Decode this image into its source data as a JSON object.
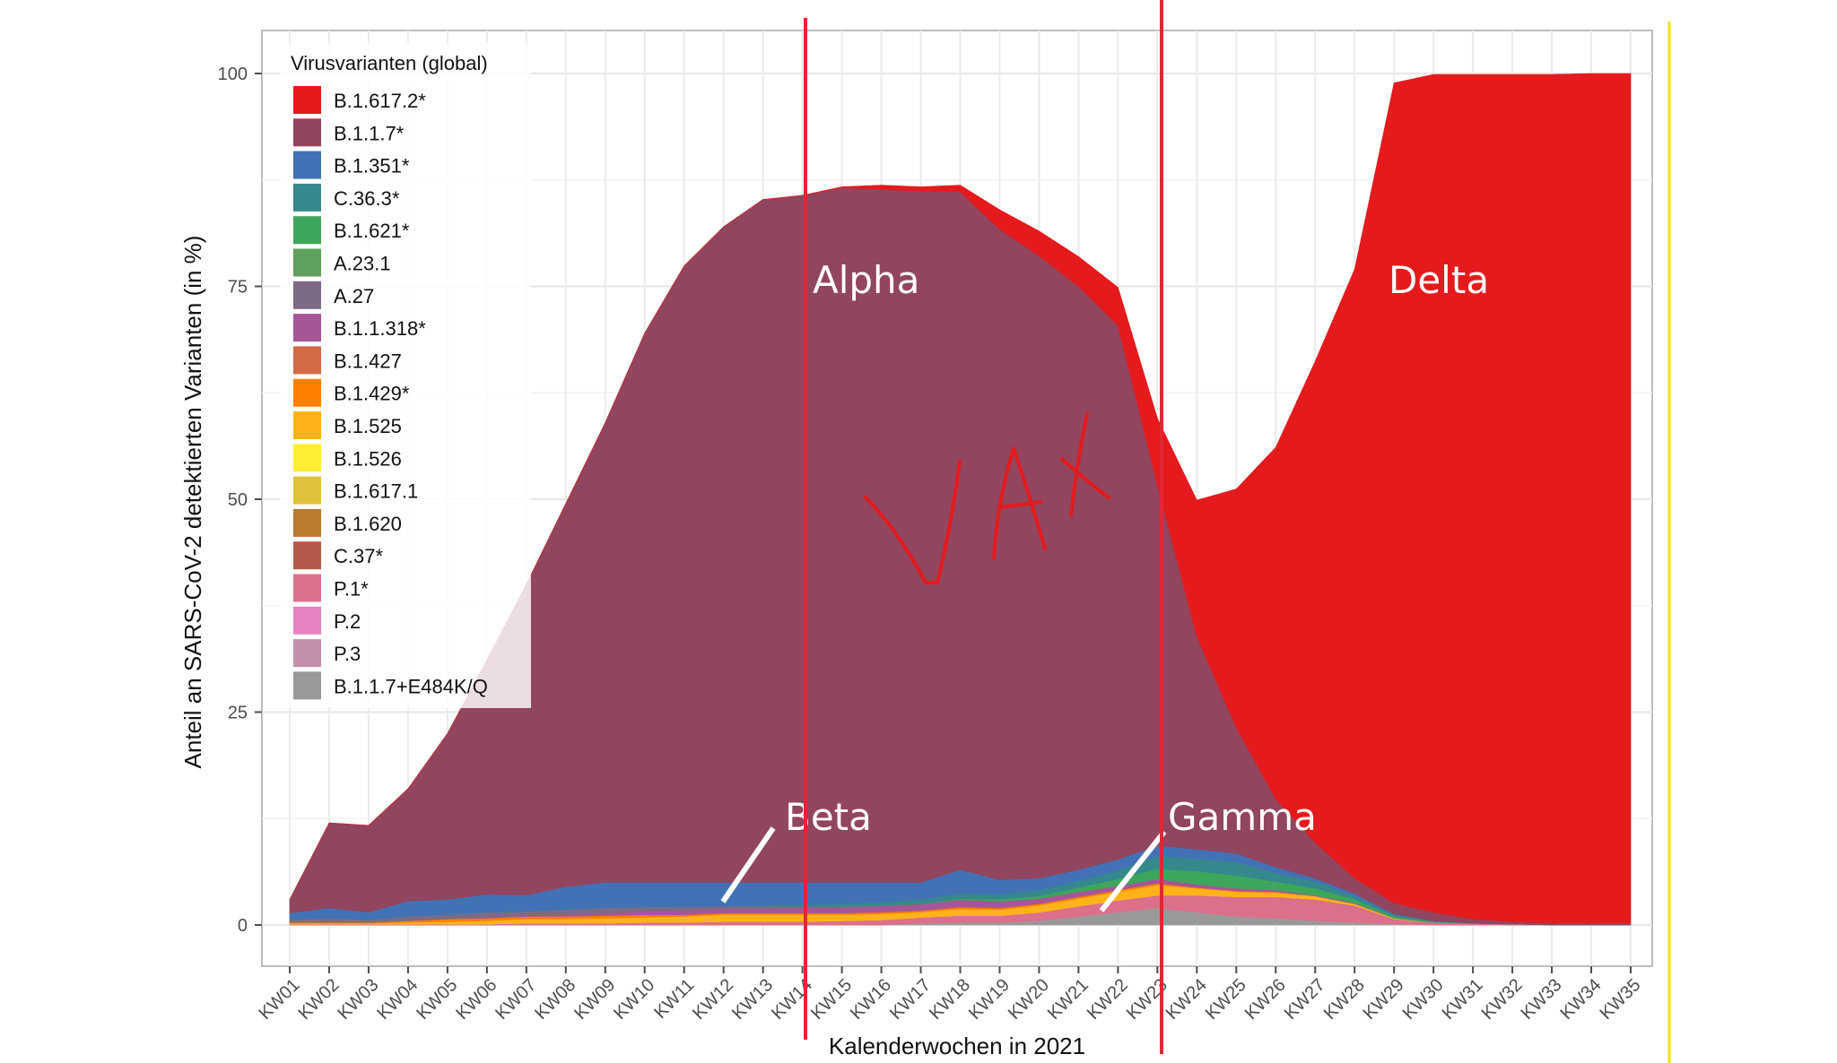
{
  "chart_data": {
    "type": "area",
    "stacked": true,
    "xlabel": "Kalenderwochen in 2021",
    "ylabel": "Anteil an SARS-CoV-2 detektierten Varianten (in %)",
    "ylim": [
      0,
      100
    ],
    "yticks": [
      0,
      25,
      50,
      75,
      100
    ],
    "grid": true,
    "legend": {
      "title": "Virusvarianten (global)",
      "position": "top-left"
    },
    "categories": [
      "KW01",
      "KW02",
      "KW03",
      "KW04",
      "KW05",
      "KW06",
      "KW07",
      "KW08",
      "KW09",
      "KW10",
      "KW11",
      "KW12",
      "KW13",
      "KW14",
      "KW15",
      "KW16",
      "KW17",
      "KW18",
      "KW19",
      "KW20",
      "KW21",
      "KW22",
      "KW23",
      "KW24",
      "KW25",
      "KW26",
      "KW27",
      "KW28",
      "KW29",
      "KW30",
      "KW31",
      "KW32",
      "KW33",
      "KW34",
      "KW35"
    ],
    "series": [
      {
        "name": "B.1.1.7+E484K/Q",
        "color": "#999999",
        "values": [
          0,
          0,
          0,
          0,
          0,
          0,
          0,
          0,
          0,
          0,
          0,
          0,
          0,
          0,
          0,
          0,
          0.2,
          0.3,
          0.3,
          0.5,
          1,
          1.5,
          2,
          1.5,
          1,
          0.8,
          0.5,
          0.3,
          0.1,
          0,
          0,
          0,
          0,
          0,
          0
        ]
      },
      {
        "name": "P.3",
        "color": "#c38faa",
        "values": [
          0,
          0,
          0,
          0,
          0,
          0,
          0,
          0,
          0,
          0,
          0,
          0,
          0,
          0,
          0,
          0,
          0,
          0,
          0,
          0,
          0,
          0,
          0,
          0,
          0,
          0,
          0,
          0,
          0,
          0,
          0,
          0,
          0,
          0,
          0
        ]
      },
      {
        "name": "P.2",
        "color": "#e782c3",
        "values": [
          0,
          0,
          0,
          0,
          0,
          0,
          0,
          0,
          0,
          0,
          0,
          0,
          0,
          0,
          0,
          0,
          0,
          0,
          0,
          0,
          0,
          0,
          0,
          0,
          0,
          0,
          0,
          0,
          0,
          0,
          0,
          0,
          0,
          0,
          0
        ]
      },
      {
        "name": "P.1*",
        "color": "#dc6f8a",
        "values": [
          0.1,
          0.1,
          0.1,
          0.1,
          0.1,
          0.1,
          0.2,
          0.2,
          0.2,
          0.3,
          0.3,
          0.4,
          0.4,
          0.4,
          0.5,
          0.6,
          0.7,
          0.8,
          0.8,
          1,
          1.2,
          1.4,
          1.5,
          2,
          2.3,
          2.5,
          2.5,
          2,
          0.6,
          0.3,
          0.2,
          0.1,
          0,
          0,
          0
        ]
      },
      {
        "name": "C.37*",
        "color": "#b55a4a",
        "values": [
          0,
          0,
          0,
          0,
          0,
          0,
          0,
          0,
          0,
          0,
          0,
          0,
          0,
          0,
          0,
          0,
          0,
          0,
          0,
          0,
          0,
          0,
          0,
          0,
          0,
          0,
          0,
          0,
          0,
          0,
          0,
          0,
          0,
          0,
          0
        ]
      },
      {
        "name": "B.1.620",
        "color": "#bb7a2e",
        "values": [
          0,
          0,
          0,
          0,
          0,
          0,
          0,
          0,
          0,
          0,
          0,
          0,
          0,
          0,
          0,
          0,
          0,
          0,
          0,
          0,
          0,
          0,
          0,
          0,
          0,
          0,
          0,
          0,
          0,
          0,
          0,
          0,
          0,
          0,
          0
        ]
      },
      {
        "name": "B.1.617.1",
        "color": "#e0c23a",
        "values": [
          0,
          0,
          0,
          0,
          0,
          0,
          0,
          0,
          0,
          0,
          0,
          0,
          0,
          0,
          0,
          0,
          0,
          0,
          0,
          0,
          0,
          0,
          0,
          0,
          0,
          0,
          0,
          0,
          0,
          0,
          0,
          0,
          0,
          0,
          0
        ]
      },
      {
        "name": "B.1.526",
        "color": "#ffee33",
        "values": [
          0,
          0,
          0,
          0,
          0,
          0,
          0,
          0,
          0,
          0,
          0,
          0,
          0,
          0,
          0,
          0,
          0,
          0,
          0,
          0,
          0,
          0,
          0,
          0,
          0,
          0,
          0,
          0,
          0,
          0,
          0,
          0,
          0,
          0,
          0
        ]
      },
      {
        "name": "B.1.525",
        "color": "#ffb319",
        "values": [
          0.1,
          0.1,
          0.1,
          0.2,
          0.3,
          0.4,
          0.5,
          0.5,
          0.6,
          0.6,
          0.7,
          0.8,
          0.8,
          0.8,
          0.7,
          0.7,
          0.6,
          0.8,
          0.7,
          0.8,
          0.9,
          1,
          1.2,
          0.8,
          0.6,
          0.5,
          0.4,
          0.2,
          0.1,
          0,
          0,
          0,
          0,
          0,
          0
        ]
      },
      {
        "name": "B.1.429*",
        "color": "#ff7f00",
        "values": [
          0.1,
          0.1,
          0.1,
          0.2,
          0.3,
          0.3,
          0.3,
          0.3,
          0.3,
          0.3,
          0.2,
          0.2,
          0.2,
          0.2,
          0.2,
          0.2,
          0.2,
          0.2,
          0.2,
          0.2,
          0.2,
          0.2,
          0.2,
          0.1,
          0.1,
          0.1,
          0,
          0,
          0,
          0,
          0,
          0,
          0,
          0,
          0
        ]
      },
      {
        "name": "B.1.427",
        "color": "#d36a45",
        "values": [
          0,
          0,
          0,
          0,
          0,
          0,
          0,
          0,
          0,
          0,
          0,
          0,
          0,
          0,
          0,
          0,
          0,
          0,
          0,
          0,
          0,
          0,
          0,
          0,
          0,
          0,
          0,
          0,
          0,
          0,
          0,
          0,
          0,
          0,
          0
        ]
      },
      {
        "name": "B.1.1.318*",
        "color": "#a65599",
        "values": [
          0,
          0,
          0,
          0,
          0,
          0.1,
          0.1,
          0.2,
          0.3,
          0.4,
          0.5,
          0.5,
          0.5,
          0.6,
          0.6,
          0.7,
          0.7,
          0.8,
          0.7,
          0.6,
          0.6,
          0.5,
          0.5,
          0.4,
          0.3,
          0.2,
          0.1,
          0.1,
          0,
          0,
          0,
          0,
          0,
          0,
          0
        ]
      },
      {
        "name": "A.27",
        "color": "#7d6b85",
        "values": [
          0.3,
          0.5,
          0.3,
          0.5,
          0.5,
          0.6,
          0.5,
          0.6,
          0.6,
          0.5,
          0.4,
          0.3,
          0.3,
          0.2,
          0.2,
          0.1,
          0.1,
          0.1,
          0.1,
          0,
          0,
          0,
          0,
          0,
          0,
          0,
          0,
          0,
          0,
          0,
          0,
          0,
          0,
          0,
          0
        ]
      },
      {
        "name": "A.23.1",
        "color": "#5fa05c",
        "values": [
          0,
          0,
          0,
          0,
          0,
          0,
          0,
          0,
          0,
          0,
          0,
          0,
          0,
          0,
          0,
          0,
          0,
          0,
          0,
          0,
          0,
          0,
          0,
          0,
          0,
          0,
          0,
          0,
          0,
          0,
          0,
          0,
          0,
          0,
          0
        ]
      },
      {
        "name": "B.1.621*",
        "color": "#3ea65b",
        "values": [
          0,
          0,
          0,
          0,
          0,
          0,
          0,
          0,
          0,
          0,
          0,
          0,
          0,
          0,
          0,
          0,
          0,
          0.1,
          0.2,
          0.3,
          0.5,
          0.8,
          1.2,
          1.5,
          1.5,
          1,
          0.8,
          0.4,
          0.2,
          0.1,
          0,
          0,
          0,
          0,
          0
        ]
      },
      {
        "name": "C.36.3*",
        "color": "#35898d",
        "values": [
          0,
          0,
          0,
          0,
          0,
          0,
          0,
          0,
          0,
          0,
          0,
          0,
          0.1,
          0.2,
          0.3,
          0.4,
          0.5,
          0.6,
          0.6,
          0.7,
          0.8,
          1,
          1.5,
          1.5,
          1.6,
          1,
          0.8,
          0.4,
          0.2,
          0,
          0,
          0,
          0,
          0,
          0
        ]
      },
      {
        "name": "B.1.351*",
        "color": "#4272b5",
        "values": [
          0.8,
          1.2,
          0.9,
          1.8,
          1.8,
          2.1,
          1.9,
          2.7,
          3,
          2.9,
          2.9,
          2.8,
          2.7,
          2.6,
          2.5,
          2.3,
          2,
          2.8,
          1.7,
          1.4,
          1.3,
          1.3,
          1.2,
          1.1,
          1,
          0.7,
          0.4,
          0.3,
          0.1,
          0.1,
          0,
          0,
          0,
          0,
          0
        ]
      },
      {
        "name": "B.1.1.7*",
        "color": "#92455e",
        "values": [
          1.6,
          10,
          10.2,
          13.2,
          19.5,
          27.5,
          36.5,
          45,
          54,
          64.5,
          72.4,
          77,
          80.2,
          80.7,
          81.6,
          81.4,
          81.2,
          79.6,
          76.4,
          73.1,
          68.5,
          62.7,
          42.4,
          25,
          14.8,
          8,
          4.2,
          1.8,
          1.3,
          1,
          0.5,
          0.3,
          0.2,
          0.2,
          0.2
        ]
      },
      {
        "name": "B.1.617.2*",
        "color": "#e41a1c",
        "values": [
          0,
          0,
          0,
          0,
          0,
          0,
          0,
          0,
          0,
          0,
          0,
          0,
          0,
          0,
          0.1,
          0.5,
          0.5,
          0.8,
          2.3,
          2.9,
          3.5,
          4.5,
          7.8,
          16,
          28,
          41.3,
          56.5,
          71.5,
          96.3,
          98.4,
          99.2,
          99.5,
          99.7,
          99.8,
          99.8
        ]
      }
    ],
    "annotations": [
      "Alpha",
      "Delta",
      "Beta",
      "Gamma",
      "VAX"
    ],
    "reference_lines": [
      "KW14",
      "KW23"
    ]
  }
}
